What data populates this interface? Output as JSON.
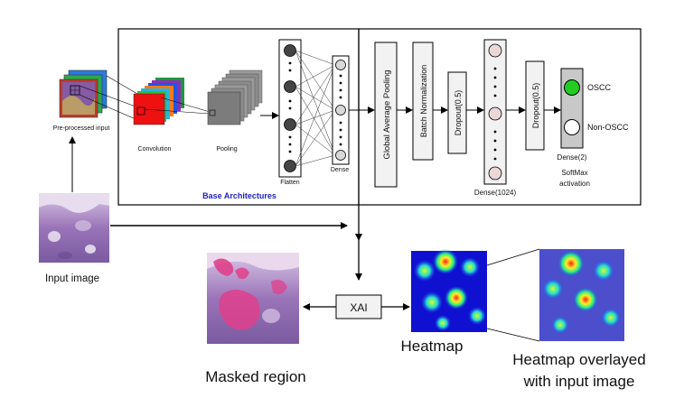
{
  "labels": {
    "preprocessed_input": "Pre-processed input",
    "convolution": "Convolution",
    "pooling": "Pooling",
    "flatten": "Flatten",
    "dense": "Dense",
    "base_architectures": "Base Architectures",
    "global_average_pooling": "Global Average Pooling",
    "batch_normalization": "Batch Normalization",
    "dropout_1": "Dropout(0.5)",
    "dense_1024": "Dense(1024)",
    "dropout_2": "Dropout(0.5)",
    "oscc": "OSCC",
    "non_oscc": "Non-OSCC",
    "dense_2": "Dense(2)",
    "softmax": "SoftMax",
    "activation": "activation",
    "input_image": "Input image",
    "xai": "XAI",
    "masked_region": "Masked region",
    "heatmap": "Heatmap",
    "heatmap_overlay_line1": "Heatmap overlayed",
    "heatmap_overlay_line2": "with input image"
  },
  "colors": {
    "base_architectures_text": "#1f1fbf",
    "oscc_output": "#22cc22",
    "non_oscc_output": "#ffffff",
    "tissue": "#9a74b8",
    "mask_highlight": "#e0408c",
    "heatmap_low": "#1010d0",
    "heatmap_high": "#ff2020"
  }
}
